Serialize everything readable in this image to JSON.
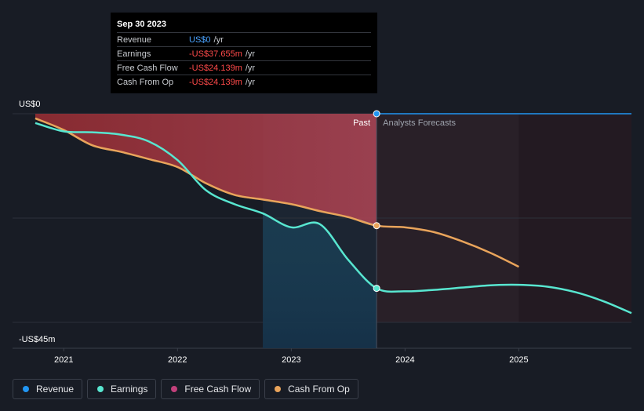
{
  "tooltip": {
    "date": "Sep 30 2023",
    "rows": [
      {
        "label": "Revenue",
        "value": "US$0",
        "unit": "/yr"
      },
      {
        "label": "Earnings",
        "value": "-US$37.655m",
        "unit": "/yr"
      },
      {
        "label": "Free Cash Flow",
        "value": "-US$24.139m",
        "unit": "/yr"
      },
      {
        "label": "Cash From Op",
        "value": "-US$24.139m",
        "unit": "/yr"
      }
    ]
  },
  "legend": [
    {
      "label": "Revenue",
      "color": "#2196f3"
    },
    {
      "label": "Earnings",
      "color": "#58e6d0"
    },
    {
      "label": "Free Cash Flow",
      "color": "#c2407b"
    },
    {
      "label": "Cash From Op",
      "color": "#e9a45b"
    }
  ],
  "chart_data": {
    "type": "line",
    "y_tick_labels": {
      "top": "US$0",
      "bottom": "-US$45m"
    },
    "x_tick_labels": [
      "2021",
      "2022",
      "2023",
      "2024",
      "2025"
    ],
    "divider_labels": {
      "past": "Past",
      "forecast": "Analysts Forecasts"
    },
    "ylim": [
      -45,
      0
    ],
    "xlim": [
      2020.55,
      2025.99
    ],
    "divider_x": 2023.75,
    "colors": {
      "revenue": "#2196f3",
      "earnings": "#58e6d0",
      "free_cash_flow": "#c2407b",
      "cash_from_op": "#e9a45b",
      "grid": "#2c313b"
    },
    "series": [
      {
        "name": "Revenue",
        "x": [
          2023.75,
          2025.99
        ],
        "y": [
          0,
          0
        ]
      },
      {
        "name": "Earnings",
        "x": [
          2020.75,
          2021.0,
          2021.25,
          2021.5,
          2021.75,
          2022.0,
          2022.25,
          2022.5,
          2022.75,
          2023.0,
          2023.25,
          2023.5,
          2023.75,
          2024.0,
          2024.25,
          2024.5,
          2024.75,
          2025.0,
          2025.25,
          2025.5,
          2025.75,
          2025.99
        ],
        "y": [
          -2.0,
          -3.8,
          -4.0,
          -4.5,
          -6.0,
          -10.0,
          -16.5,
          -19.5,
          -21.5,
          -24.5,
          -23.8,
          -31.5,
          -37.655,
          -38.3,
          -38.0,
          -37.5,
          -37.0,
          -36.9,
          -37.3,
          -38.5,
          -40.5,
          -43.0
        ]
      },
      {
        "name": "Free Cash Flow",
        "x": [
          2020.75,
          2021.0,
          2021.25,
          2021.5,
          2021.75,
          2022.0,
          2022.25,
          2022.5,
          2022.75,
          2023.0,
          2023.25,
          2023.5,
          2023.75
        ],
        "y": [
          -1.0,
          -3.5,
          -6.8,
          -8.2,
          -9.8,
          -11.5,
          -15.0,
          -17.5,
          -18.5,
          -19.5,
          -21.0,
          -22.3,
          -24.139
        ]
      },
      {
        "name": "Cash From Op",
        "x": [
          2020.75,
          2021.0,
          2021.25,
          2021.5,
          2021.75,
          2022.0,
          2022.25,
          2022.5,
          2022.75,
          2023.0,
          2023.25,
          2023.5,
          2023.75,
          2024.0,
          2024.25,
          2024.5,
          2024.75,
          2025.0
        ],
        "y": [
          -1.0,
          -3.5,
          -6.8,
          -8.2,
          -9.8,
          -11.5,
          -15.0,
          -17.5,
          -18.5,
          -19.5,
          -21.0,
          -22.3,
          -24.139,
          -24.5,
          -25.5,
          -27.5,
          -30.0,
          -33.0
        ]
      }
    ]
  }
}
